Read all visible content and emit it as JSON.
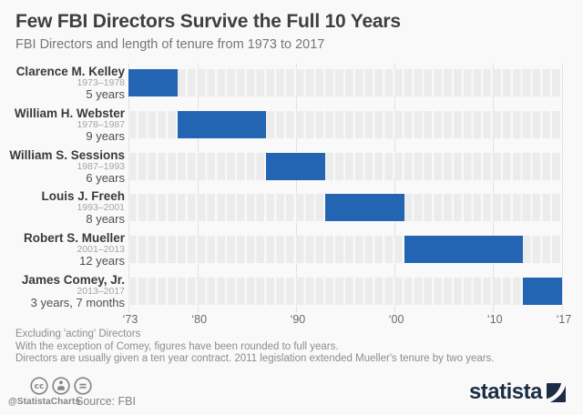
{
  "header": {
    "title": "Few FBI Directors Survive the Full 10 Years",
    "subtitle": "FBI Directors and length of tenure from 1973 to 2017"
  },
  "chart_data": {
    "type": "bar",
    "orientation": "horizontal",
    "title": "Few FBI Directors Survive the Full 10 Years",
    "subtitle": "FBI Directors and length of tenure from 1973 to 2017",
    "x_axis": {
      "range": [
        1973,
        2017
      ],
      "tick_years": [
        1973,
        1980,
        1990,
        2000,
        2010,
        2017
      ],
      "ticks": [
        "‘73",
        "‘80",
        "‘90",
        "‘00",
        "‘10",
        "‘17"
      ],
      "grid": "dotted-vertical"
    },
    "directors": [
      {
        "name": "Clarence M. Kelley",
        "term": "1973–1978",
        "duration": "5 years",
        "start_year": 1973,
        "end_year": 1978
      },
      {
        "name": "William H. Webster",
        "term": "1978–1987",
        "duration": "9 years",
        "start_year": 1978,
        "end_year": 1987
      },
      {
        "name": "William S. Sessions",
        "term": "1987–1993",
        "duration": "6 years",
        "start_year": 1987,
        "end_year": 1993
      },
      {
        "name": "Louis J. Freeh",
        "term": "1993–2001",
        "duration": "8 years",
        "start_year": 1993,
        "end_year": 2001
      },
      {
        "name": "Robert S. Mueller",
        "term": "2001–2013",
        "duration": "12 years",
        "start_year": 2001,
        "end_year": 2013
      },
      {
        "name": "James Comey, Jr.",
        "term": "2013–2017",
        "duration": "3 years, 7 months",
        "start_year": 2013,
        "end_year": 2017
      }
    ]
  },
  "colors": {
    "bar": "#2365b3",
    "track": "#ececec",
    "navy": "#1b2d44"
  },
  "notes": [
    "Excluding 'acting' Directors",
    "With the exception of Comey, figures have been rounded to full years.",
    "Directors are usually given a ten year contract. 2011 legislation extended Mueller's tenure by two years."
  ],
  "footer": {
    "license_icons": [
      "cc-icon",
      "cc-by-icon",
      "cc-nd-icon"
    ],
    "handle": "@StatistaCharts",
    "source": "Source: FBI",
    "brand": "statista"
  }
}
